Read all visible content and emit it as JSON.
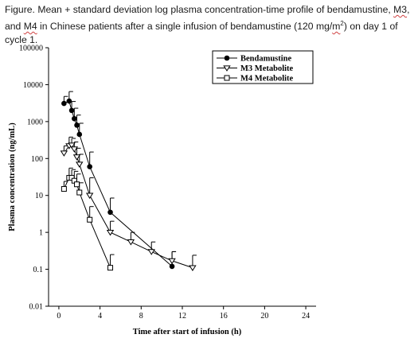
{
  "caption": {
    "part1": "Figure. Mean + standard deviation log plasma concentration-time profile of bendamustine, ",
    "m3": "M3",
    "part2": ",",
    "m4": "M4",
    "part3": " in Chinese patients after a single infusion of bendamustine (120 mg/",
    "unit": "m",
    "sup": "2",
    "part4": ") on day 1 of cycle 1.",
    "and": "and "
  },
  "chart_data": {
    "type": "line",
    "xlabel": "Time after start of infusion (h)",
    "ylabel": "Plasma concentration (ng/mL)",
    "xlim": [
      -1,
      25
    ],
    "ylim": [
      0.01,
      100000
    ],
    "yscale": "log",
    "x_ticks": [
      0,
      4,
      8,
      12,
      16,
      20,
      24
    ],
    "y_ticks": [
      0.01,
      0.1,
      1,
      10,
      100,
      1000,
      10000,
      100000
    ],
    "y_tick_labels": [
      "0.01",
      "0.1",
      "1",
      "10",
      "100",
      "1000",
      "10000",
      "100000"
    ],
    "grid": false,
    "legend_position": "top-right",
    "series": [
      {
        "name": "Bendamustine",
        "marker": "filled-circle",
        "x": [
          0.5,
          1.0,
          1.25,
          1.5,
          1.75,
          2.0,
          3.0,
          5.0,
          11.0
        ],
        "y": [
          3100,
          3600,
          2000,
          1200,
          800,
          450,
          60,
          3.5,
          0.12
        ],
        "sd_upper": [
          4800,
          6500,
          3500,
          2300,
          1500,
          900,
          150,
          8.5,
          0.3
        ]
      },
      {
        "name": "M3 Metabolite",
        "marker": "open-triangle-down",
        "x": [
          0.5,
          1.0,
          1.25,
          1.5,
          1.75,
          2.0,
          3.0,
          5.0,
          7.0,
          9.0,
          11.0,
          13.0
        ],
        "y": [
          140,
          220,
          230,
          180,
          110,
          70,
          10,
          1.0,
          0.55,
          0.3,
          0.17,
          0.11
        ],
        "sd_upper": [
          220,
          380,
          350,
          280,
          190,
          130,
          30,
          2.0,
          1.0,
          0.55,
          0.3,
          0.24
        ]
      },
      {
        "name": "M4 Metabolite",
        "marker": "open-square",
        "x": [
          0.5,
          1.0,
          1.25,
          1.5,
          1.75,
          2.0,
          3.0,
          5.0
        ],
        "y": [
          15,
          30,
          30,
          25,
          20,
          12,
          2.2,
          0.11
        ],
        "sd_upper": [
          24,
          55,
          50,
          45,
          38,
          22,
          5,
          0.25
        ]
      }
    ]
  }
}
